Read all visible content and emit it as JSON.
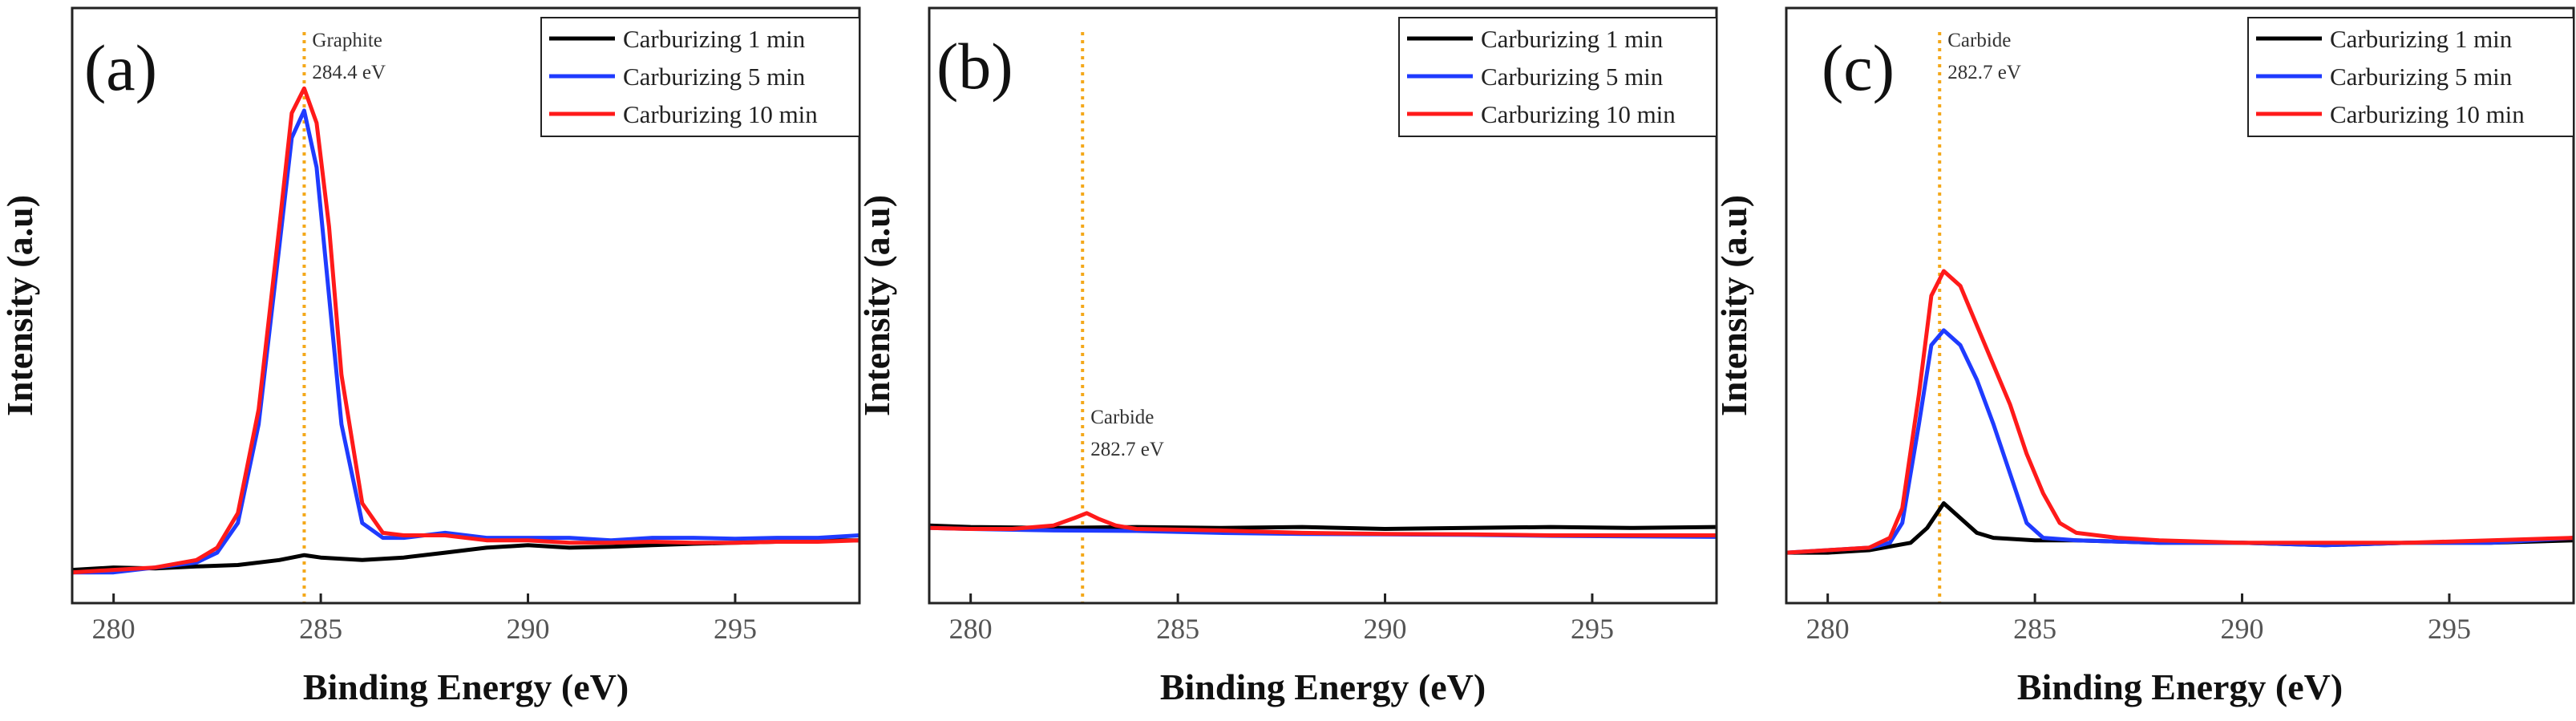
{
  "chart_data": [
    {
      "type": "line",
      "panel_label": "(a)",
      "xlabel": "Binding Energy (eV)",
      "ylabel": "Intensity (a.u)",
      "xlim": [
        279,
        298
      ],
      "ylim": [
        0,
        1
      ],
      "xticks": [
        280,
        285,
        290,
        295
      ],
      "xtick_labels": [
        "280",
        "285",
        "290",
        "295"
      ],
      "legend": {
        "placement": "top-right",
        "entries": [
          "Carburizing 1 min",
          "Carburizing 5 min",
          "Carburizing 10 min"
        ]
      },
      "annotation": {
        "x": 284.6,
        "line1": "Graphite",
        "line2": "284.4 eV"
      },
      "series": [
        {
          "name": "Carburizing 1 min",
          "color": "#000000",
          "x": [
            279,
            280,
            281,
            282,
            283,
            284,
            284.6,
            285,
            286,
            287,
            288,
            289,
            290,
            291,
            292,
            293,
            294,
            295,
            296,
            297,
            298
          ],
          "y": [
            0.025,
            0.03,
            0.028,
            0.032,
            0.035,
            0.045,
            0.055,
            0.05,
            0.045,
            0.05,
            0.06,
            0.07,
            0.075,
            0.07,
            0.072,
            0.075,
            0.078,
            0.08,
            0.082,
            0.085,
            0.085
          ]
        },
        {
          "name": "Carburizing 5 min",
          "color": "#1f3bff",
          "x": [
            279,
            280,
            281,
            282,
            282.5,
            283,
            283.5,
            284,
            284.3,
            284.6,
            284.9,
            285.2,
            285.5,
            286,
            286.5,
            287,
            288,
            289,
            290,
            291,
            292,
            293,
            294,
            295,
            296,
            297,
            298
          ],
          "y": [
            0.02,
            0.02,
            0.03,
            0.04,
            0.06,
            0.12,
            0.32,
            0.68,
            0.9,
            0.955,
            0.84,
            0.58,
            0.32,
            0.12,
            0.09,
            0.09,
            0.1,
            0.09,
            0.09,
            0.09,
            0.085,
            0.09,
            0.09,
            0.088,
            0.09,
            0.09,
            0.095
          ]
        },
        {
          "name": "Carburizing 10 min",
          "color": "#ff1a1a",
          "x": [
            279,
            280,
            281,
            282,
            282.5,
            283,
            283.5,
            284,
            284.3,
            284.6,
            284.9,
            285.2,
            285.5,
            286,
            286.5,
            287,
            288,
            289,
            290,
            291,
            292,
            293,
            294,
            295,
            296,
            297,
            298
          ],
          "y": [
            0.02,
            0.025,
            0.03,
            0.045,
            0.07,
            0.14,
            0.35,
            0.72,
            0.95,
            1.0,
            0.93,
            0.72,
            0.42,
            0.16,
            0.1,
            0.095,
            0.095,
            0.085,
            0.085,
            0.08,
            0.08,
            0.082,
            0.08,
            0.08,
            0.082,
            0.082,
            0.085
          ]
        }
      ]
    },
    {
      "type": "line",
      "panel_label": "(b)",
      "xlabel": "Binding Energy (eV)",
      "ylabel": "Intensity (a.u)",
      "xlim": [
        279,
        298
      ],
      "ylim": [
        0,
        1
      ],
      "xticks": [
        280,
        285,
        290,
        295
      ],
      "xtick_labels": [
        "280",
        "285",
        "290",
        "295"
      ],
      "legend": {
        "placement": "top-right",
        "entries": [
          "Carburizing 1 min",
          "Carburizing 5 min",
          "Carburizing 10 min"
        ]
      },
      "annotation": {
        "x": 282.7,
        "line1": "Carbide",
        "line2": "282.7 eV"
      },
      "series": [
        {
          "name": "Carburizing 1 min",
          "color": "#000000",
          "x": [
            279,
            280,
            282,
            284,
            286,
            288,
            290,
            292,
            294,
            296,
            298
          ],
          "y": [
            0.115,
            0.112,
            0.11,
            0.112,
            0.11,
            0.112,
            0.108,
            0.11,
            0.112,
            0.11,
            0.112
          ]
        },
        {
          "name": "Carburizing 5 min",
          "color": "#1f3bff",
          "x": [
            279,
            280,
            282,
            284,
            286,
            288,
            290,
            292,
            294,
            296,
            298
          ],
          "y": [
            0.11,
            0.108,
            0.105,
            0.104,
            0.1,
            0.098,
            0.097,
            0.096,
            0.094,
            0.093,
            0.092
          ]
        },
        {
          "name": "Carburizing 10 min",
          "color": "#ff1a1a",
          "x": [
            279,
            280,
            281,
            282,
            282.5,
            282.8,
            283.1,
            283.5,
            284,
            286,
            288,
            290,
            292,
            294,
            296,
            298
          ],
          "y": [
            0.11,
            0.108,
            0.108,
            0.115,
            0.13,
            0.14,
            0.128,
            0.115,
            0.108,
            0.105,
            0.1,
            0.098,
            0.097,
            0.095,
            0.095,
            0.095
          ]
        }
      ]
    },
    {
      "type": "line",
      "panel_label": "(c)",
      "xlabel": "Binding Energy (eV)",
      "ylabel": "Intensity (a.u)",
      "xlim": [
        279,
        298
      ],
      "ylim": [
        0,
        1
      ],
      "xticks": [
        280,
        285,
        290,
        295
      ],
      "xtick_labels": [
        "280",
        "285",
        "290",
        "295"
      ],
      "legend": {
        "placement": "top-right",
        "entries": [
          "Carburizing 1 min",
          "Carburizing 5 min",
          "Carburizing 10 min"
        ]
      },
      "annotation": {
        "x": 282.7,
        "line1": "Carbide",
        "line2": "282.7 eV"
      },
      "series": [
        {
          "name": "Carburizing 1 min",
          "color": "#000000",
          "x": [
            279,
            280,
            281,
            282,
            282.4,
            282.8,
            283.2,
            283.6,
            284,
            285,
            286,
            288,
            290,
            292,
            294,
            296,
            298
          ],
          "y": [
            0.06,
            0.06,
            0.065,
            0.08,
            0.11,
            0.16,
            0.13,
            0.1,
            0.09,
            0.085,
            0.085,
            0.08,
            0.08,
            0.075,
            0.08,
            0.08,
            0.085
          ]
        },
        {
          "name": "Carburizing 5 min",
          "color": "#1f3bff",
          "x": [
            279,
            280,
            281,
            281.5,
            281.8,
            282.2,
            282.5,
            282.8,
            283.2,
            283.6,
            284,
            284.4,
            284.8,
            285.2,
            286,
            288,
            290,
            292,
            294,
            296,
            298
          ],
          "y": [
            0.06,
            0.065,
            0.07,
            0.08,
            0.12,
            0.32,
            0.48,
            0.51,
            0.48,
            0.41,
            0.32,
            0.22,
            0.12,
            0.09,
            0.085,
            0.08,
            0.08,
            0.075,
            0.08,
            0.08,
            0.09
          ]
        },
        {
          "name": "Carburizing 10 min",
          "color": "#ff1a1a",
          "x": [
            279,
            280,
            281,
            281.5,
            281.8,
            282.2,
            282.5,
            282.8,
            283.2,
            283.6,
            284,
            284.4,
            284.8,
            285.2,
            285.6,
            286,
            287,
            288,
            290,
            292,
            294,
            296,
            298
          ],
          "y": [
            0.06,
            0.065,
            0.07,
            0.09,
            0.15,
            0.38,
            0.58,
            0.63,
            0.6,
            0.52,
            0.44,
            0.36,
            0.26,
            0.18,
            0.12,
            0.1,
            0.09,
            0.085,
            0.08,
            0.08,
            0.08,
            0.085,
            0.09
          ]
        }
      ]
    }
  ]
}
